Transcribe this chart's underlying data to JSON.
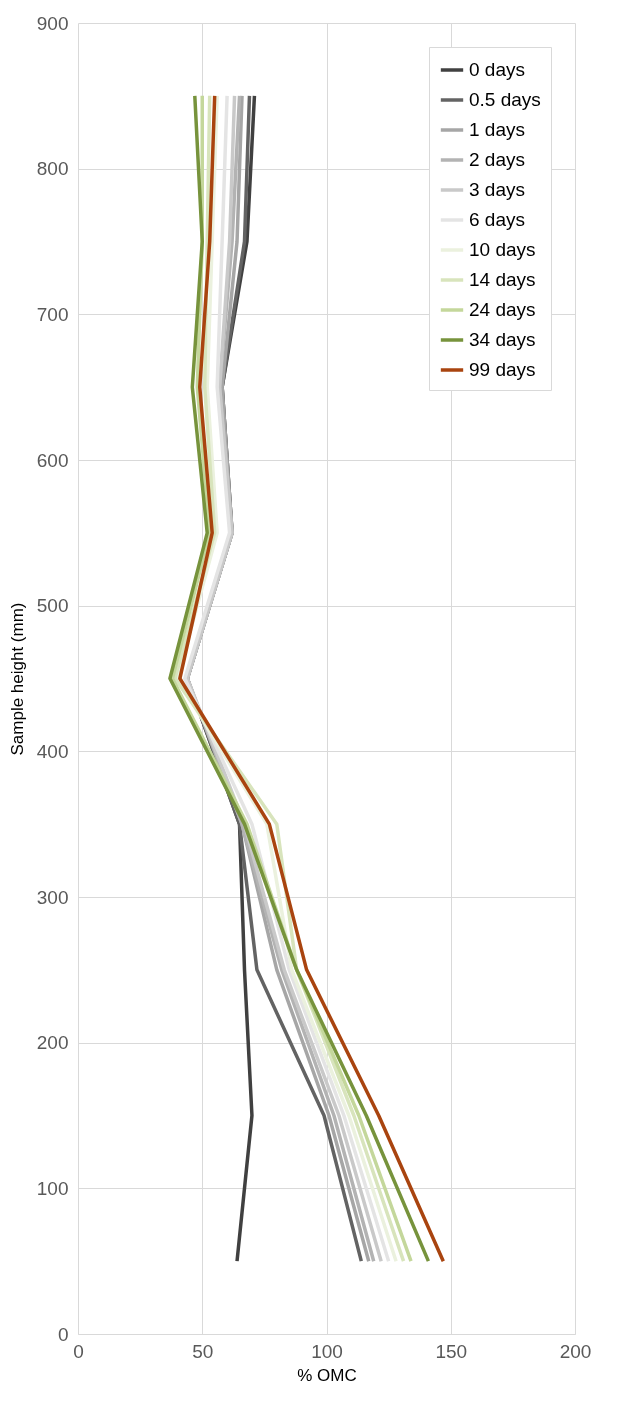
{
  "chart_data": {
    "type": "line",
    "xlabel": "% OMC",
    "ylabel": "Sample height (mm)",
    "xlim": [
      0,
      200
    ],
    "xticks": [
      0,
      50,
      100,
      150,
      200
    ],
    "ylim": [
      0,
      900
    ],
    "yticks": [
      0,
      100,
      200,
      300,
      400,
      500,
      600,
      700,
      800,
      900
    ],
    "grid": true,
    "legend": "top right",
    "marker": "none",
    "line_style": "solid",
    "series": [
      {
        "name": "0 days",
        "color": "#404040",
        "x": [
          64,
          70,
          67,
          65,
          44,
          62,
          58,
          68,
          71
        ],
        "values": [
          50,
          150,
          250,
          350,
          450,
          550,
          650,
          750,
          850
        ]
      },
      {
        "name": "0.5 days",
        "color": "#636363",
        "x": [
          114,
          99,
          72,
          65,
          44,
          62,
          58,
          67,
          69
        ],
        "values": [
          50,
          150,
          250,
          350,
          450,
          550,
          650,
          750,
          850
        ]
      },
      {
        "name": "1 days",
        "color": "#a6a6a6",
        "x": [
          117,
          101,
          80,
          66,
          44,
          62,
          58,
          64,
          66
        ],
        "values": [
          50,
          150,
          250,
          350,
          450,
          550,
          650,
          750,
          850
        ]
      },
      {
        "name": "2 days",
        "color": "#b3b3b3",
        "x": [
          119,
          103,
          82,
          66,
          44,
          62,
          57,
          62,
          65
        ],
        "values": [
          50,
          150,
          250,
          350,
          450,
          550,
          650,
          750,
          850
        ]
      },
      {
        "name": "3 days",
        "color": "#c9c9c9",
        "x": [
          122,
          105,
          83,
          67,
          44,
          62,
          57,
          61,
          63
        ],
        "values": [
          50,
          150,
          250,
          350,
          450,
          550,
          650,
          750,
          850
        ]
      },
      {
        "name": "6 days",
        "color": "#e4e4e4",
        "x": [
          125,
          107,
          85,
          70,
          43,
          61,
          56,
          58,
          60
        ],
        "values": [
          50,
          150,
          250,
          350,
          450,
          550,
          650,
          750,
          850
        ]
      },
      {
        "name": "10 days",
        "color": "#ebf1de",
        "x": [
          128,
          109,
          86,
          76,
          40,
          56,
          52,
          54,
          56
        ],
        "values": [
          50,
          150,
          250,
          350,
          450,
          550,
          650,
          750,
          850
        ]
      },
      {
        "name": "14 days",
        "color": "#d8e4bc",
        "x": [
          131,
          111,
          88,
          80,
          39,
          55,
          51,
          52,
          53
        ],
        "values": [
          50,
          150,
          250,
          350,
          450,
          550,
          650,
          750,
          850
        ]
      },
      {
        "name": "24 days",
        "color": "#c4d79b",
        "x": [
          134,
          113,
          88,
          68,
          38,
          53,
          48,
          50,
          50
        ],
        "values": [
          50,
          150,
          250,
          350,
          450,
          550,
          650,
          750,
          850
        ]
      },
      {
        "name": "34 days",
        "color": "#77933c",
        "x": [
          141,
          116,
          88,
          67,
          37,
          52,
          46,
          50,
          47
        ],
        "values": [
          50,
          150,
          250,
          350,
          450,
          550,
          650,
          750,
          850
        ]
      },
      {
        "name": "99 days",
        "color": "#a9440f",
        "x": [
          147,
          121,
          92,
          77,
          41,
          54,
          49,
          53,
          55
        ],
        "values": [
          50,
          150,
          250,
          350,
          450,
          550,
          650,
          750,
          850
        ]
      }
    ]
  }
}
